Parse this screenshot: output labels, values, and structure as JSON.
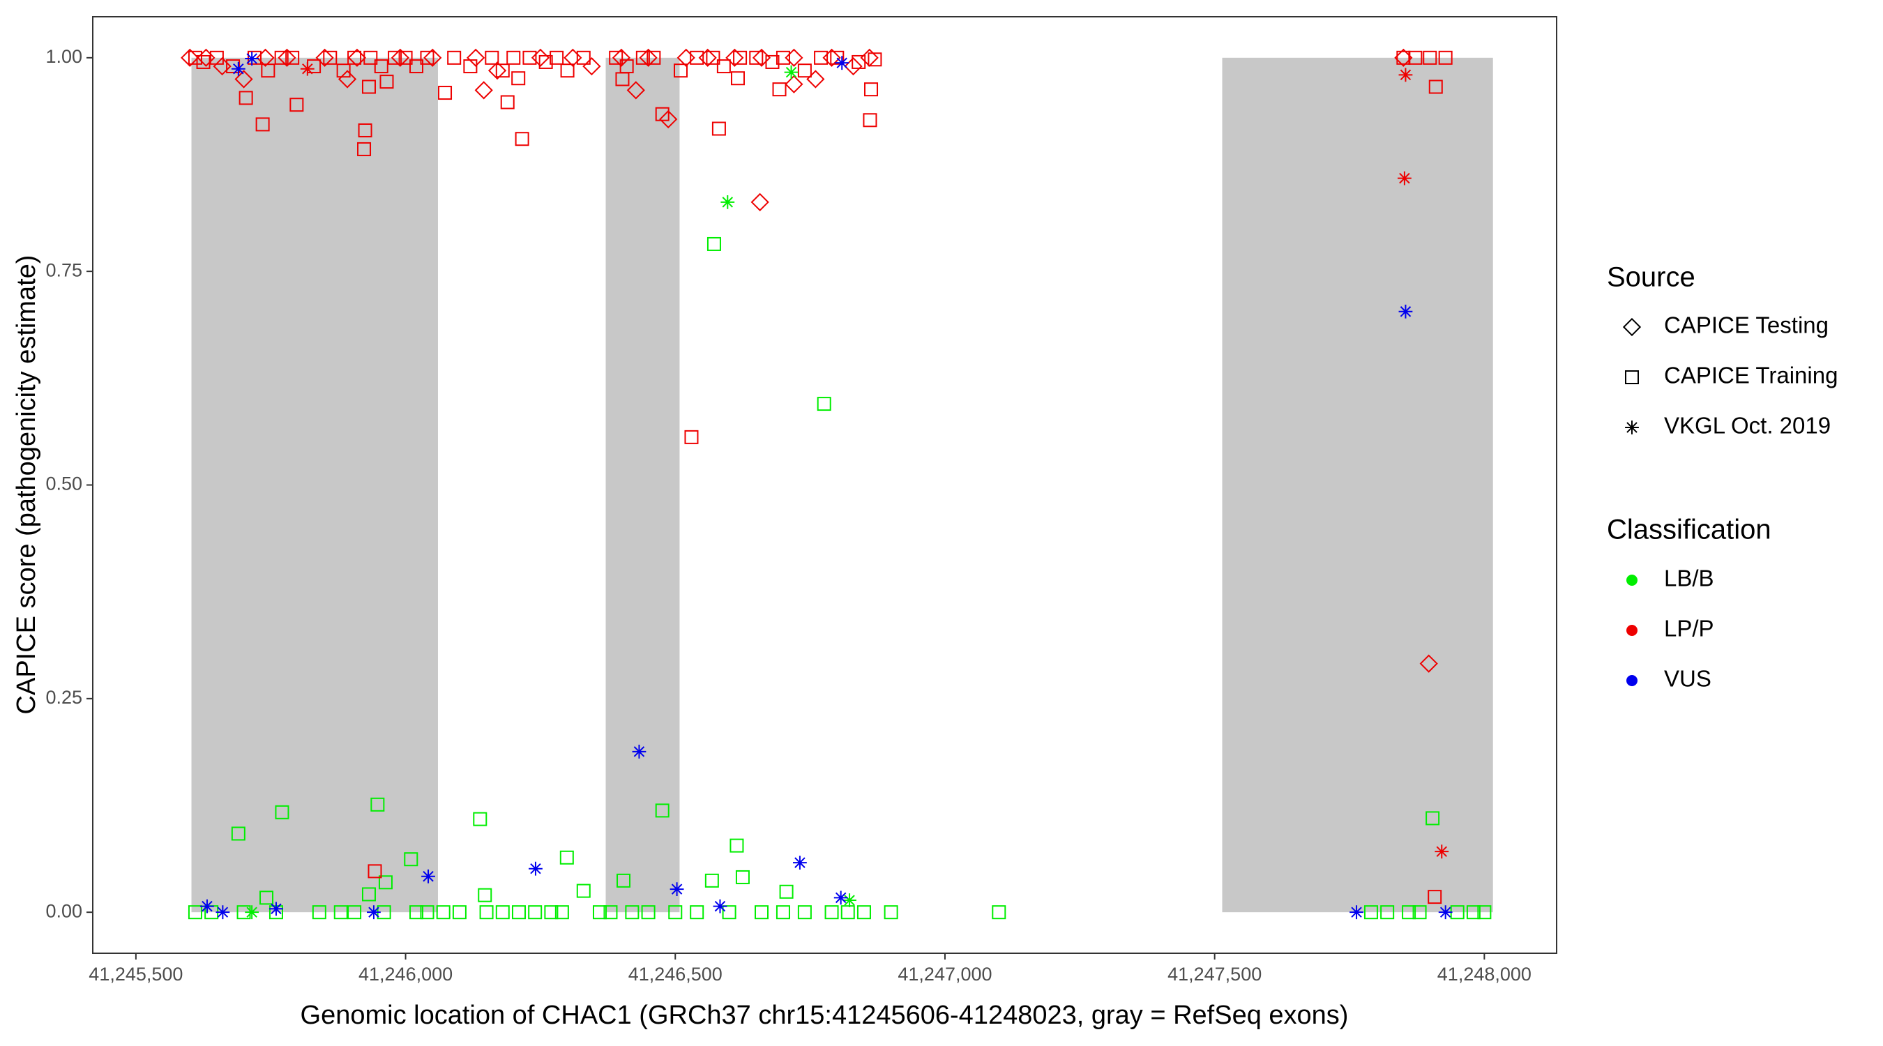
{
  "chart_data": {
    "type": "scatter",
    "xlabel": "Genomic location of CHAC1 (GRCh37 chr15:41245606-41248023, gray = RefSeq exons)",
    "ylabel": "CAPICE score (pathogenicity estimate)",
    "xlim": [
      41245420,
      41248134
    ],
    "ylim": [
      -0.048,
      1.048
    ],
    "xticks": [
      {
        "value": 41245500,
        "label": "41,245,500"
      },
      {
        "value": 41246000,
        "label": "41,246,000"
      },
      {
        "value": 41246500,
        "label": "41,246,500"
      },
      {
        "value": 41247000,
        "label": "41,247,000"
      },
      {
        "value": 41247500,
        "label": "41,247,500"
      },
      {
        "value": 41248000,
        "label": "41,248,000"
      }
    ],
    "yticks": [
      {
        "value": 0,
        "label": "0.00"
      },
      0.25,
      {
        "value": 0.5,
        "label": "0.50"
      },
      0.75,
      {
        "value": 1,
        "label": "1.00"
      }
    ],
    "grid": false,
    "exons": [
      {
        "start": 41245603,
        "end": 41246060,
        "ymin": 0,
        "ymax": 1
      },
      {
        "start": 41246371,
        "end": 41246508,
        "ymin": 0,
        "ymax": 1
      },
      {
        "start": 41247514,
        "end": 41248016,
        "ymin": 0,
        "ymax": 1
      }
    ],
    "exon_color": "#c8c8c8",
    "shape_legend": {
      "title": "Source",
      "entries": [
        {
          "name": "CAPICE Testing",
          "shape": "diamond"
        },
        {
          "name": "CAPICE Training",
          "shape": "square"
        },
        {
          "name": "VKGL Oct. 2019",
          "shape": "asterisk"
        }
      ]
    },
    "color_legend": {
      "title": "Classification",
      "entries": [
        {
          "name": "LB/B",
          "color": "#00ee00"
        },
        {
          "name": "LP/P",
          "color": "#ee0000"
        },
        {
          "name": "VUS",
          "color": "#0000ee"
        }
      ]
    },
    "series": [
      {
        "source": "CAPICE Training",
        "classification": "LB/B",
        "x": [
          41245690,
          41245771,
          41245948,
          41246010,
          41246138,
          41246299,
          41246476,
          41246572,
          41246776,
          41246614,
          41246404,
          41245963,
          41245932,
          41245742,
          41246147,
          41246330,
          41246625,
          41246568,
          41247904,
          41246706,
          41245610,
          41245640,
          41245700,
          41245760,
          41245840,
          41245880,
          41245905,
          41245960,
          41246020,
          41246040,
          41246070,
          41246100,
          41246150,
          41246180,
          41246210,
          41246240,
          41246270,
          41246290,
          41246360,
          41246380,
          41246420,
          41246450,
          41246500,
          41246540,
          41246600,
          41246660,
          41246700,
          41246740,
          41246790,
          41246820,
          41246850,
          41246900,
          41247100,
          41247790,
          41247820,
          41247860,
          41247880,
          41247950,
          41247980,
          41248000
        ],
        "y": [
          0.092,
          0.117,
          0.126,
          0.062,
          0.109,
          0.064,
          0.119,
          0.782,
          0.595,
          0.078,
          0.037,
          0.035,
          0.021,
          0.017,
          0.02,
          0.025,
          0.041,
          0.037,
          0.11,
          0.024,
          0,
          0,
          0,
          0,
          0,
          0,
          0,
          0,
          0,
          0,
          0,
          0,
          0,
          0,
          0,
          0,
          0,
          0,
          0,
          0,
          0,
          0,
          0,
          0,
          0,
          0,
          0,
          0,
          0,
          0,
          0,
          0,
          0,
          0,
          0,
          0,
          0,
          0,
          0,
          0
        ]
      },
      {
        "source": "CAPICE Training",
        "classification": "LP/P",
        "x": [
          41245704,
          41245735,
          41245798,
          41245925,
          41245923,
          41245932,
          41245965,
          41246073,
          41246189,
          41246216,
          41246209,
          41246402,
          41246476,
          41246530,
          41246581,
          41246616,
          41246693,
          41246863,
          41246861,
          41245943,
          41247850,
          41247872,
          41247899,
          41247928,
          41247910,
          41247908,
          41245610,
          41245625,
          41245650,
          41245680,
          41245720,
          41245745,
          41245770,
          41245790,
          41245830,
          41245860,
          41245885,
          41245905,
          41245935,
          41245955,
          41245980,
          41246000,
          41246020,
          41246040,
          41246090,
          41246120,
          41246160,
          41246180,
          41246200,
          41246230,
          41246260,
          41246280,
          41246300,
          41246330,
          41246390,
          41246410,
          41246440,
          41246460,
          41246510,
          41246540,
          41246570,
          41246590,
          41246620,
          41246650,
          41246680,
          41246700,
          41246740,
          41246770,
          41246800,
          41246840,
          41246870
        ],
        "y": [
          0.953,
          0.922,
          0.945,
          0.915,
          0.893,
          0.966,
          0.972,
          0.959,
          0.948,
          0.905,
          0.976,
          0.975,
          0.934,
          0.556,
          0.917,
          0.976,
          0.963,
          0.963,
          0.927,
          0.048,
          1,
          1,
          1,
          1,
          0.966,
          0.018,
          1,
          0.995,
          1,
          0.99,
          1,
          0.985,
          1,
          1,
          0.99,
          1,
          0.985,
          1,
          1,
          0.99,
          1,
          1,
          0.99,
          1,
          1,
          0.99,
          1,
          0.985,
          1,
          1,
          0.995,
          1,
          0.985,
          1,
          1,
          0.99,
          1,
          1,
          0.985,
          1,
          1,
          0.99,
          1,
          1,
          0.995,
          1,
          0.985,
          1,
          1,
          0.995,
          0.998
        ]
      },
      {
        "source": "CAPICE Testing",
        "classification": "LP/P",
        "x": [
          41245892,
          41246145,
          41246427,
          41246487,
          41246657,
          41246720,
          41246760,
          41247897,
          41247850,
          41245600,
          41245630,
          41245660,
          41245700,
          41245740,
          41245780,
          41245850,
          41245910,
          41245990,
          41246050,
          41246130,
          41246170,
          41246250,
          41246310,
          41246345,
          41246400,
          41246450,
          41246520,
          41246560,
          41246610,
          41246660,
          41246720,
          41246790,
          41246830,
          41246860
        ],
        "y": [
          0.975,
          0.962,
          0.962,
          0.928,
          0.831,
          0.969,
          0.975,
          0.291,
          1,
          1,
          1,
          0.99,
          0.975,
          1,
          1,
          1,
          1,
          1,
          1,
          1,
          0.985,
          1,
          1,
          0.99,
          1,
          1,
          1,
          1,
          1,
          1,
          1,
          1,
          0.99,
          1
        ]
      },
      {
        "source": "VKGL Oct. 2019",
        "classification": "LP/P",
        "x": [
          41247854,
          41247852,
          41247921,
          41245818
        ],
        "y": [
          0.98,
          0.859,
          0.071,
          0.987
        ]
      },
      {
        "source": "VKGL Oct. 2019",
        "classification": "LB/B",
        "x": [
          41246597,
          41246715,
          41245715,
          41246823
        ],
        "y": [
          0.831,
          0.983,
          0,
          0.014
        ]
      },
      {
        "source": "VKGL Oct. 2019",
        "classification": "VUS",
        "x": [
          41245632,
          41245661,
          41245760,
          41245941,
          41246042,
          41246241,
          41246433,
          41246503,
          41246583,
          41246731,
          41246807,
          41247763,
          41247928,
          41247854,
          41245715,
          41245690,
          41246809
        ],
        "y": [
          0.007,
          0,
          0.004,
          0,
          0.042,
          0.051,
          0.188,
          0.027,
          0.007,
          0.058,
          0.017,
          0,
          0,
          0.703,
          0.999,
          0.987,
          0.994
        ]
      }
    ]
  }
}
